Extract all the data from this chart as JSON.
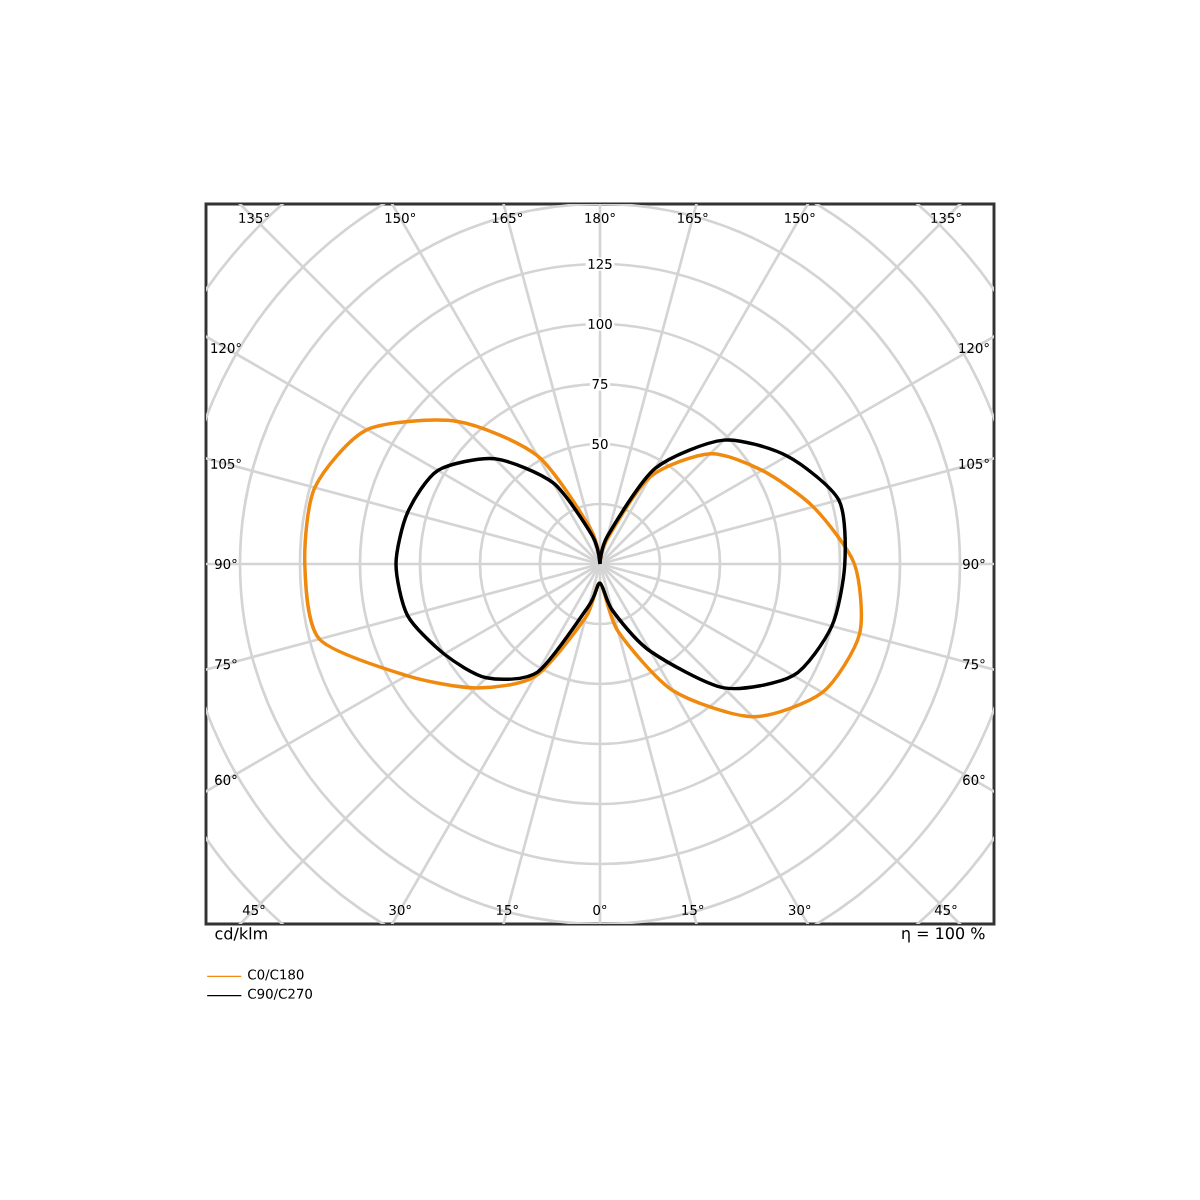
{
  "chart_data": {
    "type": "radar",
    "categories": [
      "180°",
      "165°",
      "150°",
      "135°",
      "120°",
      "105°",
      "90°",
      "75°",
      "60°",
      "45°",
      "30°",
      "15°",
      "0°",
      "15°",
      "30°",
      "45°",
      "60°",
      "75°",
      "90°",
      "105°",
      "120°",
      "135°",
      "150°",
      "165°"
    ],
    "series": [
      {
        "name": "C0/C180",
        "color": "#f08a0f",
        "values": [
          0,
          10,
          42,
          65,
          78,
          92,
          106,
          112,
          107,
          90,
          61,
          29,
          8,
          23,
          54,
          73,
          93,
          121,
          123,
          123,
          112,
          84,
          52,
          15
        ]
      },
      {
        "name": "C90/C270",
        "color": "#000000",
        "values": [
          0,
          12,
          46,
          73,
          90,
          103,
          102,
          100,
          93,
          73,
          42,
          20,
          8,
          18,
          52,
          67,
          75,
          83,
          85,
          83,
          78,
          62,
          39,
          12
        ]
      }
    ],
    "ylim": [
      0,
      225
    ],
    "yticks": [
      {
        "value": 50,
        "label": "50"
      },
      {
        "value": 75,
        "label": "75"
      },
      {
        "value": 100,
        "label": "100"
      },
      {
        "value": 125,
        "label": "125"
      }
    ],
    "grid": true,
    "legend": "bottom left",
    "ylabel": "cd/klm",
    "annotations": [
      "η = 100 %"
    ]
  }
}
